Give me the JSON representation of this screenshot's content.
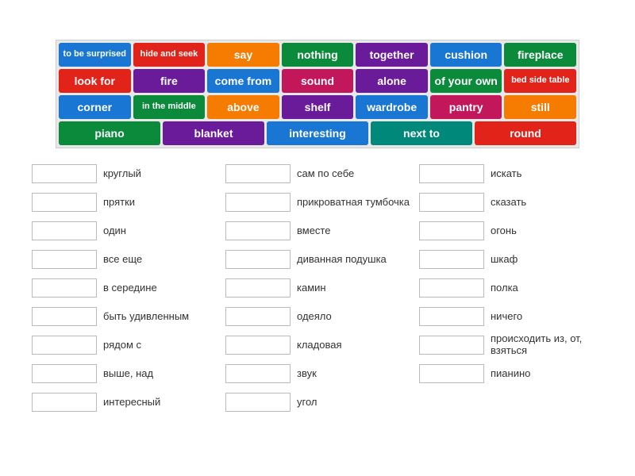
{
  "colors": {
    "red": "#e2231a",
    "green": "#0a8a3a",
    "orange": "#f57c00",
    "purple": "#6a1b9a",
    "blue": "#1976d2",
    "magenta": "#c2185b",
    "teal": "#00897b"
  },
  "wordBank": [
    [
      {
        "label": "to be surprised",
        "color": "blue",
        "small": true
      },
      {
        "label": "hide and seek",
        "color": "red",
        "small": true
      },
      {
        "label": "say",
        "color": "orange"
      },
      {
        "label": "nothing",
        "color": "green"
      },
      {
        "label": "together",
        "color": "purple"
      },
      {
        "label": "cushion",
        "color": "blue"
      },
      {
        "label": "fireplace",
        "color": "green"
      }
    ],
    [
      {
        "label": "look for",
        "color": "red"
      },
      {
        "label": "fire",
        "color": "purple"
      },
      {
        "label": "come from",
        "color": "blue"
      },
      {
        "label": "sound",
        "color": "magenta"
      },
      {
        "label": "alone",
        "color": "purple"
      },
      {
        "label": "of your own",
        "color": "green"
      },
      {
        "label": "bed side table",
        "color": "red",
        "small": true
      }
    ],
    [
      {
        "label": "corner",
        "color": "blue"
      },
      {
        "label": "in the middle",
        "color": "green",
        "small": true
      },
      {
        "label": "above",
        "color": "orange"
      },
      {
        "label": "shelf",
        "color": "purple"
      },
      {
        "label": "wardrobe",
        "color": "blue"
      },
      {
        "label": "pantry",
        "color": "magenta"
      },
      {
        "label": "still",
        "color": "orange"
      }
    ],
    [
      {
        "label": "piano",
        "color": "green"
      },
      {
        "label": "blanket",
        "color": "purple"
      },
      {
        "label": "interesting",
        "color": "blue"
      },
      {
        "label": "next to",
        "color": "teal"
      },
      {
        "label": "round",
        "color": "red"
      }
    ]
  ],
  "answers": {
    "col1": [
      "круглый",
      "прятки",
      "один",
      "все еще",
      "в середине",
      "быть удивленным",
      "рядом с",
      "выше, над",
      "интересный"
    ],
    "col2": [
      "сам по себе",
      "прикроватная тумбочка",
      "вместе",
      "диванная подушка",
      "камин",
      "одеяло",
      "кладовая",
      "звук",
      "угол"
    ],
    "col3": [
      "искать",
      "сказать",
      "огонь",
      "шкаф",
      "полка",
      "ничего",
      "происходить из, от, взяться",
      "пианино"
    ]
  }
}
